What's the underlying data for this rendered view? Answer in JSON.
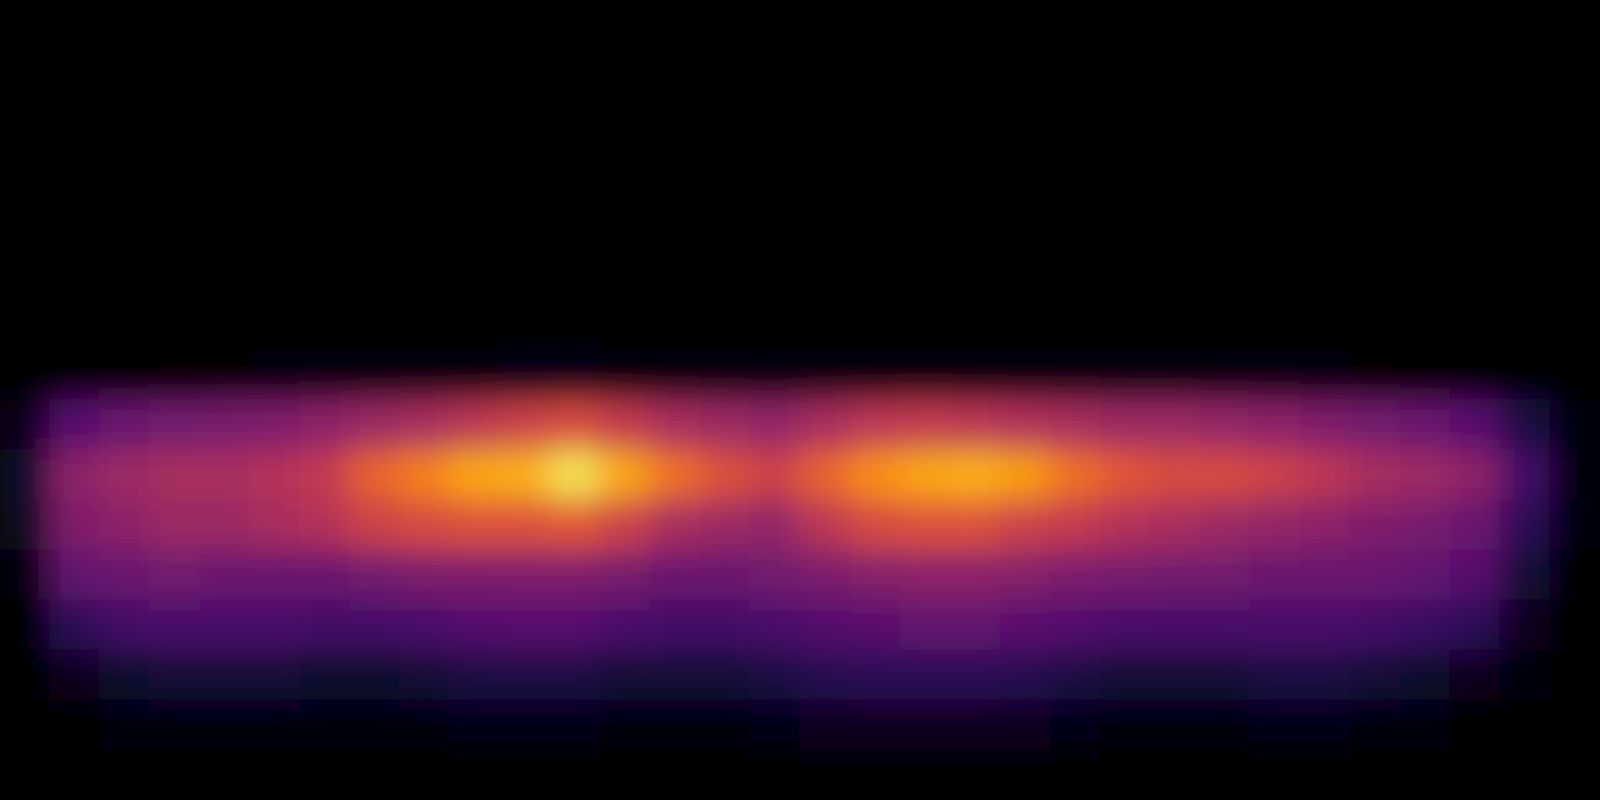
{
  "chart_data": {
    "type": "heatmap",
    "tick_labels": false,
    "zlim": [
      0,
      1
    ],
    "z": [
      [
        0,
        0,
        0,
        0,
        0,
        0,
        0,
        0,
        0,
        0,
        0,
        0,
        0,
        0,
        0,
        0,
        0,
        0,
        0,
        0,
        0,
        0,
        0,
        0,
        0,
        0,
        0,
        0,
        0,
        0,
        0,
        0
      ],
      [
        0,
        0,
        0,
        0,
        0,
        0,
        0,
        0,
        0,
        0,
        0,
        0,
        0,
        0,
        0,
        0,
        0,
        0,
        0,
        0,
        0,
        0,
        0,
        0,
        0,
        0,
        0,
        0,
        0,
        0,
        0,
        0
      ],
      [
        0,
        0,
        0,
        0,
        0,
        0,
        0,
        0,
        0,
        0,
        0,
        0,
        0,
        0,
        0,
        0,
        0,
        0,
        0,
        0,
        0,
        0,
        0,
        0,
        0,
        0,
        0,
        0,
        0,
        0,
        0,
        0
      ],
      [
        0,
        0,
        0,
        0,
        0,
        0,
        0,
        0,
        0,
        0,
        0,
        0,
        0,
        0,
        0,
        0,
        0,
        0,
        0,
        0,
        0,
        0,
        0,
        0,
        0,
        0,
        0,
        0,
        0,
        0,
        0,
        0
      ],
      [
        0,
        0,
        0,
        0,
        0,
        0,
        0,
        0,
        0,
        0,
        0,
        0,
        0,
        0,
        0,
        0,
        0,
        0,
        0,
        0,
        0,
        0,
        0,
        0,
        0,
        0,
        0,
        0,
        0,
        0,
        0,
        0
      ],
      [
        0,
        0,
        0,
        0,
        0,
        0,
        0,
        0,
        0,
        0,
        0,
        0,
        0,
        0,
        0,
        0,
        0,
        0,
        0,
        0,
        0,
        0,
        0,
        0,
        0,
        0,
        0,
        0,
        0,
        0,
        0,
        0
      ],
      [
        0,
        0,
        0,
        0,
        0,
        0,
        0,
        0,
        0,
        0,
        0,
        0,
        0,
        0,
        0,
        0,
        0,
        0,
        0,
        0,
        0,
        0,
        0,
        0,
        0,
        0,
        0,
        0,
        0,
        0,
        0,
        0
      ],
      [
        0,
        0,
        0,
        0.01,
        0.01,
        0.02,
        0.02,
        0.02,
        0.03,
        0.03,
        0.04,
        0.04,
        0.03,
        0.03,
        0.02,
        0.02,
        0.03,
        0.03,
        0.03,
        0.03,
        0.03,
        0.03,
        0.02,
        0.02,
        0.02,
        0.02,
        0.02,
        0.01,
        0.01,
        0,
        0,
        0
      ],
      [
        0.05,
        0.25,
        0.3,
        0.32,
        0.33,
        0.35,
        0.38,
        0.42,
        0.45,
        0.5,
        0.55,
        0.58,
        0.52,
        0.45,
        0.42,
        0.4,
        0.45,
        0.5,
        0.52,
        0.5,
        0.48,
        0.45,
        0.42,
        0.42,
        0.4,
        0.38,
        0.35,
        0.32,
        0.3,
        0.25,
        0.12,
        0.02
      ],
      [
        0.08,
        0.38,
        0.42,
        0.45,
        0.45,
        0.48,
        0.52,
        0.65,
        0.72,
        0.8,
        0.82,
        0.92,
        0.8,
        0.68,
        0.6,
        0.55,
        0.65,
        0.75,
        0.8,
        0.82,
        0.78,
        0.68,
        0.62,
        0.58,
        0.58,
        0.55,
        0.5,
        0.45,
        0.42,
        0.38,
        0.2,
        0.03
      ],
      [
        0.06,
        0.35,
        0.38,
        0.42,
        0.42,
        0.45,
        0.48,
        0.55,
        0.58,
        0.6,
        0.6,
        0.62,
        0.55,
        0.45,
        0.42,
        0.4,
        0.5,
        0.58,
        0.6,
        0.6,
        0.55,
        0.52,
        0.48,
        0.45,
        0.42,
        0.4,
        0.38,
        0.35,
        0.33,
        0.3,
        0.15,
        0.02
      ],
      [
        0.03,
        0.28,
        0.3,
        0.32,
        0.3,
        0.3,
        0.3,
        0.32,
        0.34,
        0.35,
        0.35,
        0.35,
        0.33,
        0.3,
        0.3,
        0.32,
        0.34,
        0.36,
        0.38,
        0.38,
        0.36,
        0.34,
        0.33,
        0.32,
        0.32,
        0.3,
        0.3,
        0.3,
        0.28,
        0.25,
        0.1,
        0.01
      ],
      [
        0.01,
        0.15,
        0.2,
        0.22,
        0.22,
        0.22,
        0.2,
        0.2,
        0.22,
        0.24,
        0.25,
        0.25,
        0.22,
        0.2,
        0.2,
        0.22,
        0.24,
        0.26,
        0.28,
        0.28,
        0.26,
        0.24,
        0.22,
        0.22,
        0.22,
        0.22,
        0.22,
        0.2,
        0.18,
        0.15,
        0.05,
        0
      ],
      [
        0,
        0.05,
        0.08,
        0.1,
        0.1,
        0.1,
        0.08,
        0.08,
        0.1,
        0.12,
        0.12,
        0.12,
        0.1,
        0.1,
        0.1,
        0.12,
        0.14,
        0.15,
        0.15,
        0.15,
        0.14,
        0.12,
        0.1,
        0.1,
        0.1,
        0.12,
        0.12,
        0.1,
        0.08,
        0.05,
        0.02,
        0
      ],
      [
        0,
        0.01,
        0.02,
        0.03,
        0.03,
        0.03,
        0.02,
        0.02,
        0.03,
        0.04,
        0.04,
        0.04,
        0.03,
        0.03,
        0.03,
        0.04,
        0.05,
        0.05,
        0.05,
        0.05,
        0.05,
        0.04,
        0.03,
        0.03,
        0.03,
        0.04,
        0.04,
        0.03,
        0.02,
        0.01,
        0,
        0
      ],
      [
        0,
        0,
        0,
        0,
        0,
        0,
        0,
        0,
        0,
        0,
        0,
        0,
        0,
        0,
        0,
        0,
        0,
        0,
        0,
        0,
        0,
        0,
        0,
        0,
        0,
        0,
        0,
        0,
        0,
        0,
        0,
        0
      ]
    ]
  }
}
